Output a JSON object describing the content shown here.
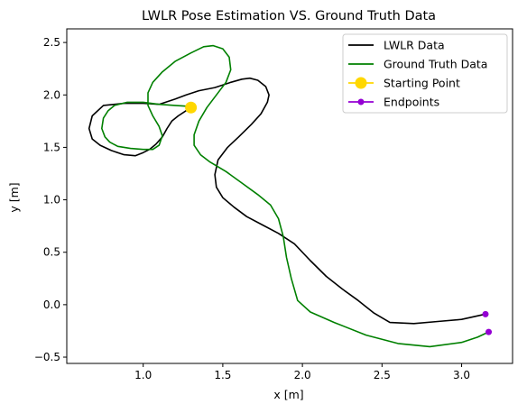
{
  "chart_data": {
    "type": "line",
    "title": "LWLR Pose Estimation VS. Ground Truth Data",
    "xlabel": "x [m]",
    "ylabel": "y [m]",
    "xlim": [
      0.52,
      3.32
    ],
    "ylim": [
      -0.56,
      2.63
    ],
    "xticks": [
      1.0,
      1.5,
      2.0,
      2.5,
      3.0
    ],
    "xtick_labels": [
      "1.0",
      "1.5",
      "2.0",
      "2.5",
      "3.0"
    ],
    "yticks": [
      -0.5,
      0.0,
      0.5,
      1.0,
      1.5,
      2.0,
      2.5
    ],
    "ytick_labels": [
      "−0.5",
      "0.0",
      "0.5",
      "1.0",
      "1.5",
      "2.0",
      "2.5"
    ],
    "grid": false,
    "legend_position": "top-right",
    "legend": [
      {
        "label": "LWLR Data",
        "color": "#000000",
        "marker": "none"
      },
      {
        "label": "Ground Truth Data",
        "color": "#008000",
        "marker": "none"
      },
      {
        "label": "Starting Point",
        "color": "#FFD700",
        "marker": "big-dot"
      },
      {
        "label": "Endpoints",
        "color": "#9400D3",
        "marker": "dot"
      }
    ],
    "series": [
      {
        "name": "LWLR Data",
        "color": "#000000",
        "x": [
          1.3,
          1.22,
          1.18,
          1.15,
          1.12,
          1.08,
          1.04,
          1.0,
          0.95,
          0.88,
          0.8,
          0.73,
          0.68,
          0.66,
          0.68,
          0.75,
          0.88,
          1.0,
          1.1,
          1.2,
          1.27,
          1.35,
          1.45,
          1.55,
          1.62,
          1.67,
          1.72,
          1.77,
          1.79,
          1.78,
          1.74,
          1.68,
          1.6,
          1.53,
          1.47,
          1.45,
          1.46,
          1.5,
          1.57,
          1.65,
          1.75,
          1.85,
          1.95,
          2.05,
          2.15,
          2.25,
          2.35,
          2.45,
          2.55,
          2.7,
          2.85,
          3.0,
          3.15
        ],
        "y": [
          1.88,
          1.8,
          1.75,
          1.68,
          1.6,
          1.53,
          1.48,
          1.45,
          1.42,
          1.43,
          1.47,
          1.52,
          1.58,
          1.68,
          1.8,
          1.9,
          1.92,
          1.92,
          1.91,
          1.96,
          2.0,
          2.04,
          2.07,
          2.12,
          2.15,
          2.16,
          2.14,
          2.08,
          2.0,
          1.93,
          1.82,
          1.72,
          1.6,
          1.5,
          1.38,
          1.24,
          1.12,
          1.02,
          0.93,
          0.84,
          0.76,
          0.68,
          0.58,
          0.42,
          0.27,
          0.15,
          0.04,
          -0.08,
          -0.17,
          -0.18,
          -0.16,
          -0.14,
          -0.09
        ]
      },
      {
        "name": "Ground Truth Data",
        "color": "#008000",
        "x": [
          1.3,
          1.2,
          1.1,
          1.0,
          0.9,
          0.82,
          0.78,
          0.75,
          0.74,
          0.76,
          0.79,
          0.84,
          0.92,
          1.0,
          1.06,
          1.1,
          1.12,
          1.1,
          1.06,
          1.03,
          1.03,
          1.06,
          1.12,
          1.2,
          1.3,
          1.38,
          1.44,
          1.5,
          1.54,
          1.55,
          1.52,
          1.46,
          1.4,
          1.35,
          1.32,
          1.32,
          1.36,
          1.42,
          1.52,
          1.62,
          1.72,
          1.8,
          1.85,
          1.88,
          1.9,
          1.93,
          1.97,
          2.05,
          2.2,
          2.4,
          2.6,
          2.8,
          3.0,
          3.1,
          3.17
        ],
        "y": [
          1.89,
          1.9,
          1.91,
          1.93,
          1.93,
          1.9,
          1.85,
          1.78,
          1.68,
          1.6,
          1.55,
          1.51,
          1.49,
          1.48,
          1.48,
          1.52,
          1.61,
          1.7,
          1.8,
          1.9,
          2.02,
          2.12,
          2.22,
          2.32,
          2.4,
          2.46,
          2.47,
          2.44,
          2.36,
          2.24,
          2.12,
          2.0,
          1.88,
          1.75,
          1.62,
          1.52,
          1.43,
          1.36,
          1.27,
          1.16,
          1.05,
          0.95,
          0.82,
          0.65,
          0.45,
          0.25,
          0.04,
          -0.07,
          -0.17,
          -0.29,
          -0.37,
          -0.4,
          -0.36,
          -0.31,
          -0.26
        ]
      }
    ],
    "starting_point": {
      "x": 1.3,
      "y": 1.88,
      "color": "#FFD700"
    },
    "endpoints": [
      {
        "x": 3.15,
        "y": -0.09,
        "color": "#9400D3"
      },
      {
        "x": 3.17,
        "y": -0.26,
        "color": "#9400D3"
      }
    ]
  }
}
